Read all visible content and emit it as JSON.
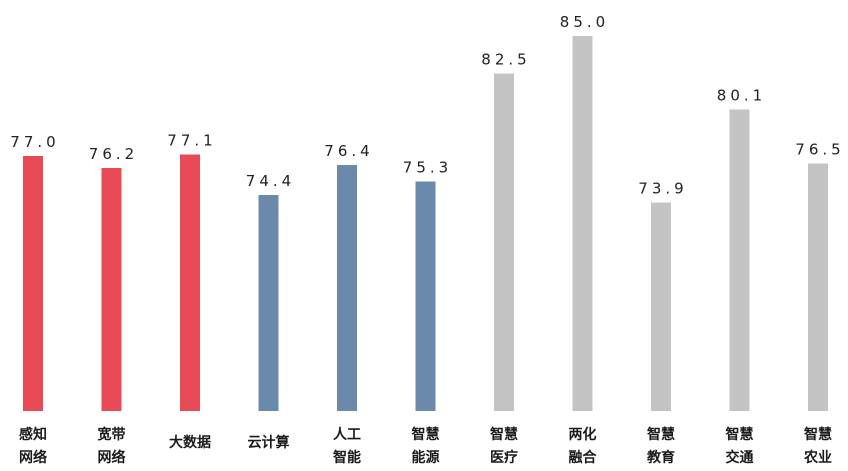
{
  "chart_data": {
    "type": "bar",
    "categories": [
      [
        "感知",
        "网络"
      ],
      [
        "宽带",
        "网络"
      ],
      [
        "大数据"
      ],
      [
        "云计算"
      ],
      [
        "人工",
        "智能"
      ],
      [
        "智慧",
        "能源"
      ],
      [
        "智慧",
        "医疗"
      ],
      [
        "两化",
        "融合"
      ],
      [
        "智慧",
        "教育"
      ],
      [
        "智慧",
        "交通"
      ],
      [
        "智慧",
        "农业"
      ]
    ],
    "values": [
      77.0,
      76.2,
      77.1,
      74.4,
      76.4,
      75.3,
      82.5,
      85.0,
      73.9,
      80.1,
      76.5
    ],
    "value_labels": [
      "77.0",
      "76.2",
      "77.1",
      "74.4",
      "76.4",
      "75.3",
      "82.5",
      "85.0",
      "73.9",
      "80.1",
      "76.5"
    ],
    "colors": [
      "#e84b55",
      "#e84b55",
      "#e84b55",
      "#6a89ab",
      "#6a89ab",
      "#6a89ab",
      "#c4c4c4",
      "#c4c4c4",
      "#c4c4c4",
      "#c4c4c4",
      "#c4c4c4"
    ],
    "ylim": [
      60,
      85
    ],
    "grid": false,
    "legend": "none"
  }
}
